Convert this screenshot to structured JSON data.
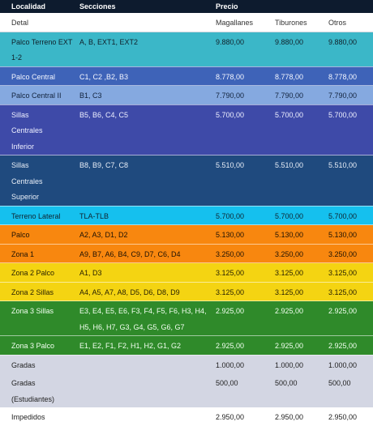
{
  "header": {
    "localidad": "Localidad",
    "secciones": "Secciones",
    "precio": "Precio"
  },
  "subheader": {
    "detal": "Detal",
    "magallanes": "Magallanes",
    "tiburones": "Tiburones",
    "otros": "Otros"
  },
  "rows": [
    {
      "localidad": "Palco Terreno EXT 1-2",
      "secciones": "A, B, EXT1, EXT2",
      "magallanes": "9.880,00",
      "tiburones": "9.880,00",
      "otros": "9.880,00",
      "color": "#3bb7c8"
    },
    {
      "localidad": "Palco Central",
      "secciones": "C1, C2 ,B2, B3",
      "magallanes": "8.778,00",
      "tiburones": "8.778,00",
      "otros": "8.778,00",
      "color": "#3e63b8"
    },
    {
      "localidad": "Palco Central II",
      "secciones": "B1, C3",
      "magallanes": "7.790,00",
      "tiburones": "7.790,00",
      "otros": "7.790,00",
      "color": "#85a9e0"
    },
    {
      "localidad": "Sillas Centrales Inferior",
      "secciones": "B5, B6, C4, C5",
      "magallanes": "5.700,00",
      "tiburones": "5.700,00",
      "otros": "5.700,00",
      "color": "#3e4aa8"
    },
    {
      "localidad": "Sillas Centrales Superior",
      "secciones": "B8, B9, C7, C8",
      "magallanes": "5.510,00",
      "tiburones": "5.510,00",
      "otros": "5.510,00",
      "color": "#1f4a7e"
    },
    {
      "localidad": "Terreno Lateral",
      "secciones": "TLA-TLB",
      "magallanes": "5.700,00",
      "tiburones": "5.700,00",
      "otros": "5.700,00",
      "color": "#15c0ee"
    },
    {
      "localidad": "Palco",
      "secciones": "A2, A3, D1, D2",
      "magallanes": "5.130,00",
      "tiburones": "5.130,00",
      "otros": "5.130,00",
      "color": "#f8870f"
    },
    {
      "localidad": "Zona 1",
      "secciones": "A9, B7, A6, B4, C9, D7, C6, D4",
      "magallanes": "3.250,00",
      "tiburones": "3.250,00",
      "otros": "3.250,00",
      "color": "#f8870f"
    },
    {
      "localidad": "Zona 2 Palco",
      "secciones": "A1, D3",
      "magallanes": "3.125,00",
      "tiburones": "3.125,00",
      "otros": "3.125,00",
      "color": "#f4d412"
    },
    {
      "localidad": "Zona 2 Sillas",
      "secciones": "A4, A5, A7, A8, D5, D6, D8, D9",
      "magallanes": "3.125,00",
      "tiburones": "3.125,00",
      "otros": "3.125,00",
      "color": "#f4d412"
    },
    {
      "localidad": "Zona 3 Sillas",
      "secciones": "E3, E4, E5, E6, F3, F4, F5, F6, H3, H4, H5, H6, H7, G3, G4, G5, G6, G7",
      "magallanes": "2.925,00",
      "tiburones": "2.925,00",
      "otros": "2.925,00",
      "color": "#2f8a2a"
    },
    {
      "localidad": "Zona 3 Palco",
      "secciones": "E1, E2, F1, F2, H1, H2, G1, G2",
      "magallanes": "2.925,00",
      "tiburones": "2.925,00",
      "otros": "2.925,00",
      "color": "#2f8a2a"
    },
    {
      "localidad": "Gradas",
      "secciones": "",
      "magallanes": "1.000,00",
      "tiburones": "1.000,00",
      "otros": "1.000,00",
      "color": "#d3d6e3"
    },
    {
      "localidad": "Gradas (Estudiantes)",
      "secciones": "",
      "magallanes": "500,00",
      "tiburones": "500,00",
      "otros": "500,00",
      "color": "#d3d6e3"
    },
    {
      "localidad": "Impedidos",
      "secciones": "",
      "magallanes": "2.950,00",
      "tiburones": "2.950,00",
      "otros": "2.950,00",
      "color": "#ffffff"
    }
  ]
}
